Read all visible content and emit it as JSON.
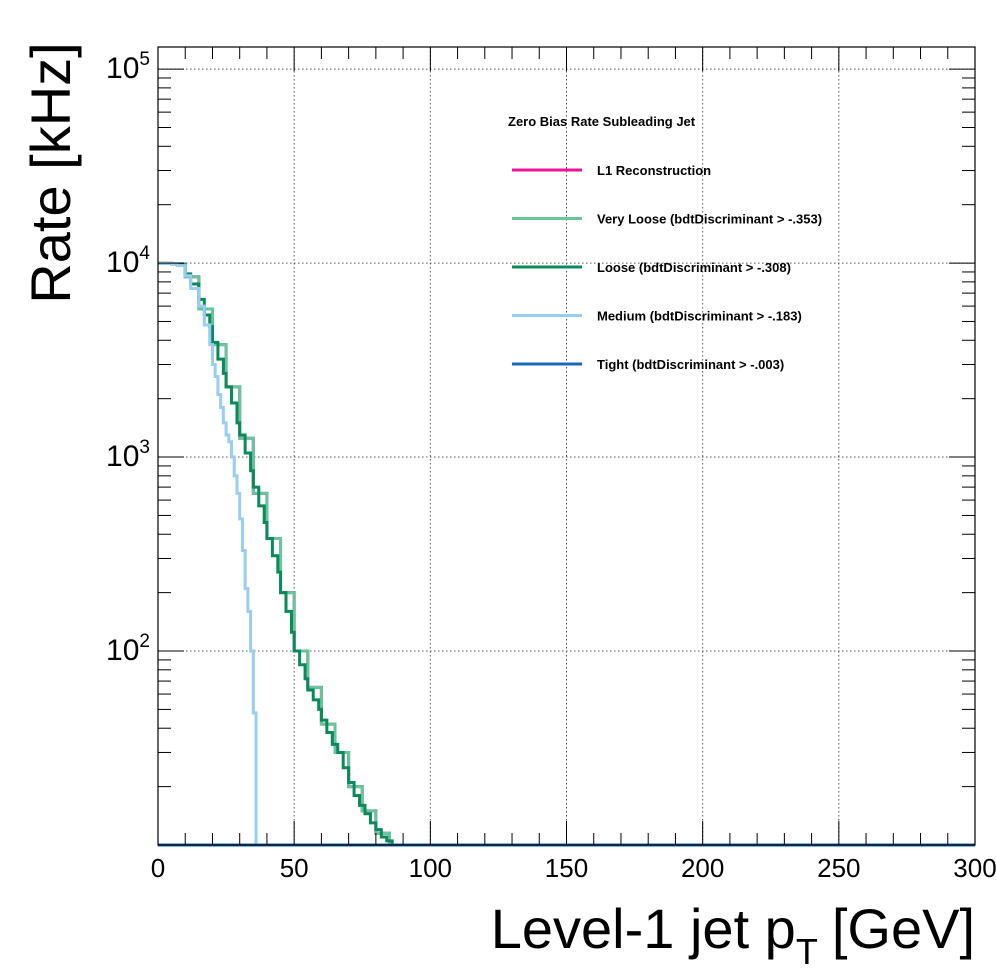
{
  "chart_data": {
    "type": "line",
    "xlabel": "Level-1 jet p",
    "xlabel_sub": "T",
    "xlabel_unit": "[GeV]",
    "ylabel": "Rate [kHz]",
    "xlim": [
      0,
      300
    ],
    "ylim": [
      10,
      130000
    ],
    "yscale": "log",
    "grid": true,
    "legend_position": "top-right",
    "legend_title": "Zero Bias Rate Subleading Jet",
    "x_ticks": [
      "0",
      "50",
      "100",
      "150",
      "200",
      "250",
      "300"
    ],
    "y_ticks": [
      {
        "base": "10",
        "exp": "2",
        "value": 100
      },
      {
        "base": "10",
        "exp": "3",
        "value": 1000
      },
      {
        "base": "10",
        "exp": "4",
        "value": 10000
      },
      {
        "base": "10",
        "exp": "5",
        "value": 100000
      }
    ],
    "series": [
      {
        "name": "L1 Reconstruction",
        "color": "#ee1199",
        "x": [
          0,
          5,
          10,
          15,
          20,
          25,
          30,
          35,
          40,
          45,
          50,
          55,
          60,
          65,
          70,
          75,
          80,
          85,
          300
        ],
        "y": [
          10000,
          9900,
          8500,
          5800,
          3800,
          2300,
          1250,
          650,
          380,
          200,
          100,
          65,
          42,
          30,
          20,
          15,
          11.5,
          10,
          10
        ]
      },
      {
        "name": "Very Loose (bdtDiscriminant > -.353)",
        "color": "#66c59a",
        "x": [
          0,
          5,
          10,
          15,
          20,
          25,
          30,
          35,
          40,
          45,
          50,
          55,
          60,
          65,
          70,
          75,
          80,
          85,
          300
        ],
        "y": [
          10000,
          9900,
          8500,
          5800,
          3800,
          2300,
          1250,
          650,
          380,
          200,
          100,
          65,
          42,
          30,
          20,
          15,
          11.5,
          10,
          10
        ]
      },
      {
        "name": "Loose (bdtDiscriminant > -.308)",
        "color": "#0a8a5a",
        "x": [
          0,
          5,
          7,
          10,
          12,
          15,
          17,
          19,
          20,
          22,
          24,
          25,
          27,
          29,
          30,
          32,
          34,
          35,
          37,
          39,
          40,
          42,
          44,
          45,
          47,
          49,
          50,
          52,
          54,
          55,
          57,
          59,
          60,
          62,
          64,
          66,
          68,
          70,
          72,
          74,
          76,
          78,
          80,
          82,
          84,
          86,
          300
        ],
        "y": [
          10000,
          9950,
          9800,
          8800,
          7800,
          6500,
          5400,
          4700,
          3900,
          3200,
          2700,
          2300,
          1900,
          1500,
          1300,
          1050,
          850,
          700,
          560,
          460,
          380,
          310,
          255,
          200,
          160,
          125,
          100,
          85,
          72,
          63,
          56,
          50,
          44,
          38,
          33,
          30,
          25,
          21,
          18,
          16,
          14.5,
          13,
          12,
          11,
          10.5,
          10,
          10
        ]
      },
      {
        "name": "Medium (bdtDiscriminant > -.183)",
        "color": "#99cdf2",
        "x": [
          0,
          5,
          7,
          10,
          12,
          15,
          17,
          19,
          20,
          21,
          22,
          23,
          24,
          25,
          26,
          27,
          28,
          29,
          30,
          31,
          32,
          33,
          34,
          35,
          36,
          300
        ],
        "y": [
          10000,
          9950,
          9700,
          8600,
          7400,
          6000,
          4800,
          3800,
          3000,
          2600,
          2100,
          1800,
          1500,
          1300,
          1200,
          1000,
          800,
          650,
          480,
          330,
          210,
          160,
          100,
          48,
          10,
          10
        ]
      },
      {
        "name": "Tight (bdtDiscriminant > -.003)",
        "color": "#1a66bb",
        "x": [
          0,
          300
        ],
        "y": [
          10,
          10
        ]
      }
    ]
  }
}
